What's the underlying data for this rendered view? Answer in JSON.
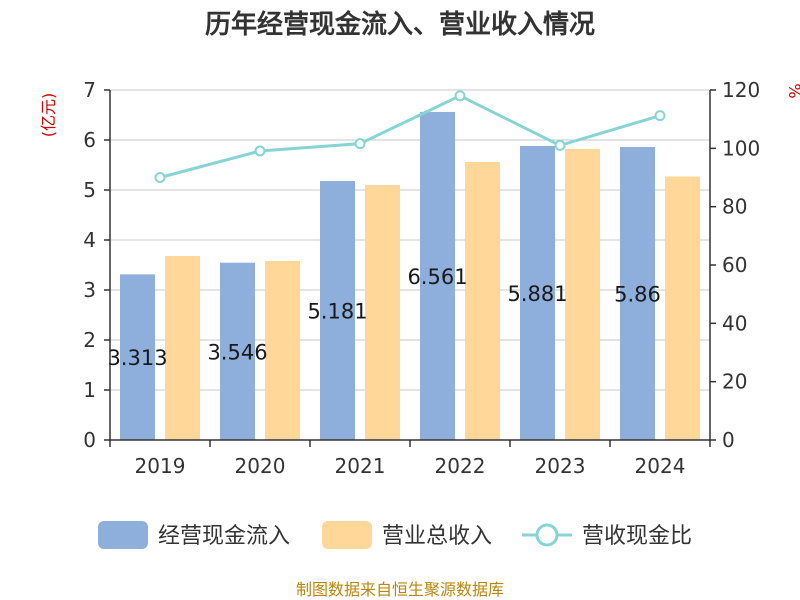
{
  "chart_data": {
    "type": "bar",
    "title": "历年经营现金流入、营业收入情况",
    "left_unit": "(亿元)",
    "right_unit": "%",
    "categories": [
      "2019",
      "2020",
      "2021",
      "2022",
      "2023",
      "2024"
    ],
    "ylim": [
      0,
      7
    ],
    "y2lim": [
      0,
      120
    ],
    "yticks": [
      "0",
      "1",
      "2",
      "3",
      "4",
      "5",
      "6",
      "7"
    ],
    "y2ticks": [
      "0",
      "20",
      "40",
      "60",
      "80",
      "100",
      "120"
    ],
    "grid": true,
    "legend_position": "bottom",
    "series": [
      {
        "name": "经营现金流入",
        "type": "bar",
        "axis": "left",
        "color": "#8eaedb",
        "values": [
          3.313,
          3.546,
          5.181,
          6.561,
          5.881,
          5.86
        ],
        "labels": [
          "3.313",
          "3.546",
          "5.181",
          "6.561",
          "5.881",
          "5.86"
        ]
      },
      {
        "name": "营业总收入",
        "type": "bar",
        "axis": "left",
        "color": "#ffd899",
        "values": [
          3.68,
          3.58,
          5.1,
          5.56,
          5.82,
          5.27
        ]
      },
      {
        "name": "营收现金比",
        "type": "line",
        "axis": "right",
        "color": "#86d4d4",
        "values": [
          90,
          99.1,
          101.6,
          118,
          101,
          111.2
        ]
      }
    ]
  },
  "footer": {
    "source": "制图数据来自恒生聚源数据库"
  },
  "colors": {
    "unit": "#cc0000",
    "source": "#b8860b",
    "axis": "#333333",
    "grid": "#c8c8c8"
  }
}
